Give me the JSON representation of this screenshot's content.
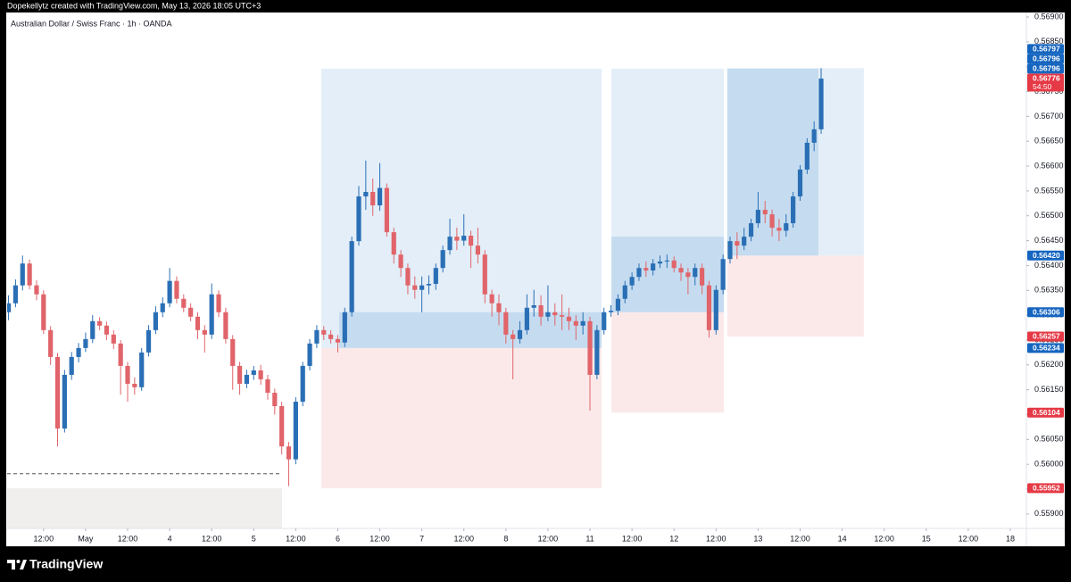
{
  "header": {
    "attribution": "Dopekellytz created with TradingView.com, May 13, 2026 18:05 UTC+3",
    "symbol": "Australian Dollar / Swiss Franc · 1h · OANDA"
  },
  "footer": {
    "logo": "TradingView"
  },
  "chart_data": {
    "type": "candlestick",
    "up_color": "#2a6fb5",
    "down_color": "#e0646a",
    "open": [
      0.56306,
      0.56324,
      0.5636,
      0.56404,
      0.5636,
      0.56342,
      0.5627,
      0.56216,
      0.56072,
      0.5618,
      0.56216,
      0.56234,
      0.56252,
      0.56288,
      0.56279,
      0.56261,
      0.56243,
      0.56198,
      0.56162,
      0.56155,
      0.56225,
      0.5627,
      0.56306,
      0.56324,
      0.56369,
      0.56333,
      0.56315,
      0.56297,
      0.5627,
      0.56261,
      0.56342,
      0.56306,
      0.56252,
      0.56198,
      0.56162,
      0.5618,
      0.56189,
      0.56171,
      0.56144,
      0.56117,
      0.56036,
      0.5601,
      0.56126,
      0.56198,
      0.56243,
      0.5627,
      0.56261,
      0.56252,
      0.56245,
      0.56306,
      0.56449,
      0.56539,
      0.56548,
      0.56521,
      0.56556,
      0.56467,
      0.56422,
      0.56395,
      0.5636,
      0.56351,
      0.5636,
      0.56363,
      0.56395,
      0.56431,
      0.56458,
      0.5645,
      0.5646,
      0.5644,
      0.56422,
      0.56342,
      0.56324,
      0.56306,
      0.56261,
      0.56252,
      0.5627,
      0.56315,
      0.5632,
      0.56297,
      0.56306,
      0.563,
      0.56297,
      0.56288,
      0.56279,
      0.56288,
      0.5618,
      0.5627,
      0.56306,
      0.56309,
      0.56333,
      0.5636,
      0.56377,
      0.56395,
      0.5639,
      0.56404,
      0.56408,
      0.5641,
      0.56395,
      0.56386,
      0.56377,
      0.56395,
      0.5636,
      0.5627,
      0.56351,
      0.56413,
      0.56449,
      0.5644,
      0.56458,
      0.56485,
      0.56512,
      0.56503,
      0.56476,
      0.5647,
      0.56485,
      0.56539,
      0.56593,
      0.56647,
      0.56674
    ],
    "high": [
      0.5634,
      0.56372,
      0.5642,
      0.56412,
      0.5637,
      0.5635,
      0.56278,
      0.56224,
      0.5619,
      0.56226,
      0.56244,
      0.56265,
      0.563,
      0.56296,
      0.56287,
      0.5627,
      0.5625,
      0.56206,
      0.56175,
      0.56234,
      0.5628,
      0.56318,
      0.56336,
      0.56395,
      0.56378,
      0.56342,
      0.56324,
      0.56306,
      0.5628,
      0.56364,
      0.5635,
      0.56315,
      0.5626,
      0.56206,
      0.5619,
      0.56198,
      0.562,
      0.5618,
      0.56152,
      0.56126,
      0.56045,
      0.56135,
      0.56206,
      0.56252,
      0.5628,
      0.56278,
      0.5627,
      0.5626,
      0.56315,
      0.56458,
      0.5656,
      0.56611,
      0.56575,
      0.56606,
      0.56565,
      0.56476,
      0.56431,
      0.56404,
      0.56378,
      0.56378,
      0.5638,
      0.56404,
      0.5644,
      0.56494,
      0.56476,
      0.56503,
      0.5647,
      0.56476,
      0.56431,
      0.56351,
      0.56342,
      0.56315,
      0.5627,
      0.56288,
      0.56342,
      0.56351,
      0.5634,
      0.5636,
      0.56324,
      0.56342,
      0.56315,
      0.563,
      0.56306,
      0.56297,
      0.5628,
      0.56315,
      0.5632,
      0.56342,
      0.56369,
      0.56386,
      0.56404,
      0.56408,
      0.56413,
      0.5642,
      0.56422,
      0.56418,
      0.56404,
      0.56395,
      0.56404,
      0.56404,
      0.56369,
      0.5636,
      0.56422,
      0.56458,
      0.56467,
      0.56476,
      0.56494,
      0.56548,
      0.5653,
      0.56512,
      0.56494,
      0.56503,
      0.56548,
      0.56602,
      0.56656,
      0.5669,
      0.56797
    ],
    "low": [
      0.5629,
      0.56316,
      0.5635,
      0.56352,
      0.5633,
      0.56262,
      0.562,
      0.56036,
      0.56064,
      0.5617,
      0.56205,
      0.56226,
      0.56244,
      0.5627,
      0.5625,
      0.56232,
      0.5614,
      0.56126,
      0.5614,
      0.56148,
      0.56217,
      0.56262,
      0.56296,
      0.56316,
      0.56324,
      0.56306,
      0.56288,
      0.56252,
      0.56225,
      0.56252,
      0.56296,
      0.56243,
      0.5615,
      0.5614,
      0.56153,
      0.5617,
      0.5616,
      0.5613,
      0.561,
      0.5602,
      0.55956,
      0.56,
      0.56117,
      0.56189,
      0.56234,
      0.5625,
      0.56243,
      0.56225,
      0.56236,
      0.56297,
      0.5644,
      0.56512,
      0.565,
      0.5651,
      0.56458,
      0.56404,
      0.56377,
      0.56342,
      0.56333,
      0.56306,
      0.56342,
      0.56351,
      0.56386,
      0.56422,
      0.56431,
      0.5644,
      0.56395,
      0.56404,
      0.56324,
      0.56297,
      0.5628,
      0.56243,
      0.56171,
      0.56243,
      0.56261,
      0.56297,
      0.56279,
      0.56288,
      0.56279,
      0.5627,
      0.5627,
      0.5625,
      0.56261,
      0.56108,
      0.56171,
      0.56261,
      0.56297,
      0.563,
      0.56324,
      0.56351,
      0.56369,
      0.56377,
      0.5638,
      0.56395,
      0.56395,
      0.56386,
      0.56369,
      0.56342,
      0.5636,
      0.56342,
      0.56255,
      0.56261,
      0.56342,
      0.56404,
      0.56413,
      0.56431,
      0.56449,
      0.56476,
      0.56485,
      0.56458,
      0.56449,
      0.56458,
      0.56476,
      0.5653,
      0.56584,
      0.5663,
      0.56665
    ],
    "close": [
      0.56324,
      0.5636,
      0.56404,
      0.5636,
      0.56342,
      0.5627,
      0.56216,
      0.56072,
      0.5618,
      0.56216,
      0.56234,
      0.56252,
      0.56288,
      0.56279,
      0.56261,
      0.56243,
      0.56198,
      0.56162,
      0.56155,
      0.56225,
      0.5627,
      0.56306,
      0.56324,
      0.56369,
      0.56333,
      0.56315,
      0.56297,
      0.5627,
      0.56261,
      0.56342,
      0.56306,
      0.56252,
      0.56198,
      0.56162,
      0.5618,
      0.56189,
      0.56171,
      0.56144,
      0.56117,
      0.56036,
      0.5601,
      0.56126,
      0.56198,
      0.56243,
      0.5627,
      0.56261,
      0.56252,
      0.56245,
      0.56306,
      0.56449,
      0.56539,
      0.56548,
      0.56521,
      0.56556,
      0.56467,
      0.56422,
      0.56395,
      0.5636,
      0.56351,
      0.5636,
      0.56363,
      0.56395,
      0.56431,
      0.56458,
      0.5645,
      0.5646,
      0.5644,
      0.56422,
      0.56342,
      0.56324,
      0.56306,
      0.56261,
      0.56252,
      0.5627,
      0.56315,
      0.5632,
      0.56297,
      0.56306,
      0.563,
      0.56297,
      0.56288,
      0.56279,
      0.56288,
      0.5618,
      0.5627,
      0.56306,
      0.56309,
      0.56333,
      0.5636,
      0.56377,
      0.56395,
      0.5639,
      0.56404,
      0.56408,
      0.5641,
      0.56395,
      0.56386,
      0.56377,
      0.56395,
      0.5636,
      0.5627,
      0.56351,
      0.56413,
      0.56449,
      0.5644,
      0.56458,
      0.56485,
      0.56512,
      0.56503,
      0.56476,
      0.5647,
      0.56485,
      0.56539,
      0.56593,
      0.56647,
      0.56674,
      0.56776
    ],
    "xlim": [
      -0.2,
      145.3
    ],
    "xticks": [
      {
        "value": 5,
        "label": "12:00"
      },
      {
        "value": 11,
        "label": "May"
      },
      {
        "value": 17,
        "label": "12:00"
      },
      {
        "value": 23,
        "label": "4"
      },
      {
        "value": 29,
        "label": "12:00"
      },
      {
        "value": 35,
        "label": "5"
      },
      {
        "value": 41,
        "label": "12:00"
      },
      {
        "value": 47,
        "label": "6"
      },
      {
        "value": 53,
        "label": "12:00"
      },
      {
        "value": 59,
        "label": "7"
      },
      {
        "value": 65,
        "label": "12:00"
      },
      {
        "value": 71,
        "label": "8"
      },
      {
        "value": 77,
        "label": "12:00"
      },
      {
        "value": 83,
        "label": "11"
      },
      {
        "value": 89,
        "label": "12:00"
      },
      {
        "value": 95,
        "label": "12"
      },
      {
        "value": 101,
        "label": "12:00"
      },
      {
        "value": 107,
        "label": "13"
      },
      {
        "value": 113,
        "label": "12:00"
      },
      {
        "value": 119,
        "label": "14"
      },
      {
        "value": 125,
        "label": "12:00"
      },
      {
        "value": 131,
        "label": "15"
      },
      {
        "value": 137,
        "label": "12:00"
      },
      {
        "value": 143,
        "label": "18"
      }
    ],
    "ylim": [
      0.55871,
      0.56909
    ],
    "yticks": [
      {
        "value": 0.559,
        "label": "0.55900"
      },
      {
        "value": 0.5595,
        "label": "0.55950"
      },
      {
        "value": 0.56,
        "label": "0.56000"
      },
      {
        "value": 0.5605,
        "label": "0.56050"
      },
      {
        "value": 0.561,
        "label": "0.56100"
      },
      {
        "value": 0.5615,
        "label": "0.56150"
      },
      {
        "value": 0.562,
        "label": "0.56200"
      },
      {
        "value": 0.5625,
        "label": "0.56250"
      },
      {
        "value": 0.563,
        "label": "0.56300"
      },
      {
        "value": 0.5635,
        "label": "0.56350"
      },
      {
        "value": 0.564,
        "label": "0.56400"
      },
      {
        "value": 0.5645,
        "label": "0.56450"
      },
      {
        "value": 0.565,
        "label": "0.56500"
      },
      {
        "value": 0.5655,
        "label": "0.56550"
      },
      {
        "value": 0.566,
        "label": "0.56600"
      },
      {
        "value": 0.5665,
        "label": "0.56650"
      },
      {
        "value": 0.567,
        "label": "0.56700"
      },
      {
        "value": 0.5675,
        "label": "0.56750"
      },
      {
        "value": 0.568,
        "label": "0.56800"
      },
      {
        "value": 0.5685,
        "label": "0.56850"
      },
      {
        "value": 0.569,
        "label": "0.56900"
      }
    ],
    "grid": false,
    "positions": [
      {
        "x0": 44.65,
        "x1": 84.66,
        "target": 0.56796,
        "entry": 0.56234,
        "stop": 0.55952,
        "fill_x0": 47.2,
        "fill_x1": 84.66,
        "fill_to": 0.56306
      },
      {
        "x0": 86.06,
        "x1": 102.12,
        "target": 0.56796,
        "entry": 0.56306,
        "stop": 0.56104,
        "fill_x0": 86.06,
        "fill_x1": 102.12,
        "fill_to": 0.56458
      },
      {
        "x0": 102.6,
        "x1": 122.1,
        "target": 0.56797,
        "entry": 0.5642,
        "stop": 0.56257,
        "fill_x0": 102.6,
        "fill_x1": 115.6,
        "fill_to": 0.56796
      }
    ],
    "zones": [
      {
        "x0": -0.2,
        "x1": 39.05,
        "top": 0.55952,
        "line": 0.55981
      }
    ],
    "price_tags": [
      {
        "value": 0.56797,
        "label": "0.56797",
        "color": "#1565c0"
      },
      {
        "value": 0.56796,
        "label": "0.56796",
        "color": "#1565c0"
      },
      {
        "value": 0.56796,
        "label": "0.56796",
        "color": "#1565c0"
      },
      {
        "value": 0.56776,
        "label": "0.56776",
        "color": "#e53945",
        "countdown": "54:50"
      },
      {
        "value": 0.5642,
        "label": "0.56420",
        "color": "#1565c0"
      },
      {
        "value": 0.56306,
        "label": "0.56306",
        "color": "#1565c0"
      },
      {
        "value": 0.56257,
        "label": "0.56257",
        "color": "#e53945"
      },
      {
        "value": 0.56234,
        "label": "0.56234",
        "color": "#1565c0"
      },
      {
        "value": 0.56104,
        "label": "0.56104",
        "color": "#e53945"
      },
      {
        "value": 0.55952,
        "label": "0.55952",
        "color": "#e53945"
      }
    ]
  }
}
